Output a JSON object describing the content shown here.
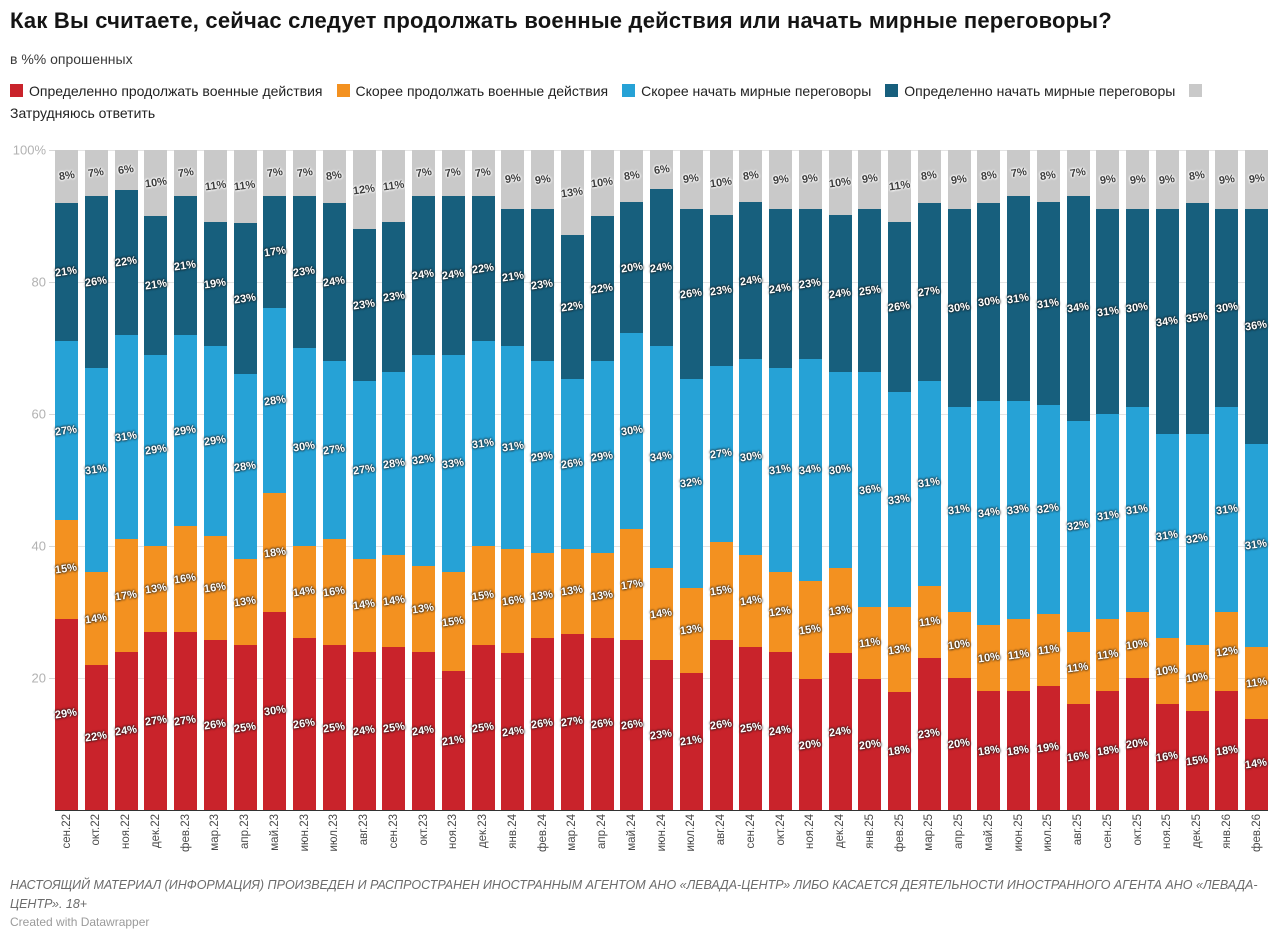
{
  "title": "Как Вы считаете, сейчас следует продолжать военные действия или начать мирные переговоры?",
  "subtitle": "в %% опрошенных",
  "legend": {
    "items": [
      {
        "label": "Определенно продолжать военные действия",
        "color": "#c9232b"
      },
      {
        "label": "Скорее продолжать военные действия",
        "color": "#f39120"
      },
      {
        "label": "Скорее начать мирные переговоры",
        "color": "#26a2d6"
      },
      {
        "label": "Определенно начать мирные переговоры",
        "color": "#175f7d"
      },
      {
        "label": "Затрудняюсь ответить",
        "color": "#c9c9c9"
      }
    ]
  },
  "chart_data": {
    "type": "bar",
    "stacked": true,
    "ylim": [
      0,
      100
    ],
    "grid": true,
    "yticks": [
      {
        "label": "100%",
        "value": 100
      },
      {
        "label": "80",
        "value": 80
      },
      {
        "label": "60",
        "value": 60
      },
      {
        "label": "40",
        "value": 40
      },
      {
        "label": "20",
        "value": 20
      }
    ],
    "categories": [
      "сен.22",
      "окт.22",
      "ноя.22",
      "дек.22",
      "фев.23",
      "мар.23",
      "апр.23",
      "май.23",
      "июн.23",
      "июл.23",
      "авг.23",
      "сен.23",
      "окт.23",
      "ноя.23",
      "дек.23",
      "янв.24",
      "фев.24",
      "мар.24",
      "апр.24",
      "май.24",
      "июн.24",
      "июл.24",
      "авг.24",
      "сен.24",
      "окт.24",
      "ноя.24",
      "дек.24",
      "янв.25",
      "фев.25",
      "мар.25",
      "апр.25",
      "май.25",
      "июн.25",
      "июл.25",
      "авг.25",
      "сен.25",
      "окт.25",
      "ноя.25",
      "дек.25",
      "янв.26",
      "фев.26"
    ],
    "series": [
      {
        "name": "Определенно продолжать военные действия",
        "color": "#c9232b",
        "label_style": "light",
        "values": [
          29,
          22,
          24,
          27,
          27,
          26,
          25,
          30,
          26,
          25,
          24,
          25,
          24,
          21,
          25,
          24,
          26,
          27,
          26,
          26,
          23,
          21,
          26,
          25,
          24,
          20,
          24,
          20,
          18,
          23,
          20,
          18,
          18,
          19,
          16,
          18,
          20,
          16,
          15,
          18,
          14
        ]
      },
      {
        "name": "Скорее продолжать военные действия",
        "color": "#f39120",
        "label_style": "light",
        "values": [
          15,
          14,
          17,
          13,
          16,
          16,
          13,
          18,
          14,
          16,
          14,
          14,
          13,
          15,
          15,
          16,
          13,
          13,
          13,
          17,
          14,
          13,
          15,
          14,
          12,
          15,
          13,
          11,
          13,
          11,
          10,
          10,
          11,
          11,
          11,
          11,
          10,
          10,
          10,
          12,
          11
        ]
      },
      {
        "name": "Скорее начать мирные переговоры",
        "color": "#26a2d6",
        "label_style": "light",
        "values": [
          27,
          31,
          31,
          29,
          29,
          29,
          28,
          28,
          30,
          27,
          27,
          28,
          32,
          33,
          31,
          31,
          29,
          26,
          29,
          30,
          34,
          32,
          27,
          30,
          31,
          34,
          30,
          36,
          33,
          31,
          31,
          34,
          33,
          32,
          32,
          31,
          31,
          31,
          32,
          31,
          31
        ]
      },
      {
        "name": "Определенно начать мирные переговоры",
        "color": "#175f7d",
        "label_style": "light",
        "values": [
          21,
          26,
          22,
          21,
          21,
          19,
          23,
          17,
          23,
          24,
          23,
          23,
          24,
          24,
          22,
          21,
          23,
          22,
          22,
          20,
          24,
          26,
          23,
          24,
          24,
          23,
          24,
          25,
          26,
          27,
          30,
          30,
          31,
          31,
          34,
          31,
          30,
          34,
          35,
          30,
          36
        ]
      },
      {
        "name": "Затрудняюсь ответить",
        "color": "#c9c9c9",
        "label_style": "dark",
        "values": [
          8,
          7,
          6,
          10,
          7,
          11,
          11,
          7,
          7,
          8,
          12,
          11,
          7,
          7,
          7,
          9,
          9,
          13,
          10,
          8,
          6,
          9,
          10,
          8,
          9,
          9,
          10,
          9,
          11,
          8,
          9,
          8,
          7,
          8,
          7,
          9,
          9,
          9,
          8,
          9,
          9
        ]
      }
    ],
    "value_suffix": "%"
  },
  "footer": {
    "disclaimer": "НАСТОЯЩИЙ МАТЕРИАЛ (ИНФОРМАЦИЯ) ПРОИЗВЕДЕН И РАСПРОСТРАНЕН ИНОСТРАННЫМ АГЕНТОМ АНО «ЛЕВАДА-ЦЕНТР» ЛИБО КАСАЕТСЯ ДЕЯТЕЛЬНОСТИ ИНОСТРАННОГО АГЕНТА АНО «ЛЕВАДА-ЦЕНТР». 18+",
    "credit": "Created with Datawrapper"
  }
}
